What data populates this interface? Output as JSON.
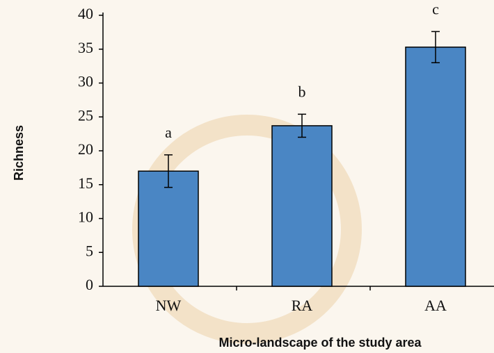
{
  "chart_data": {
    "type": "bar",
    "x_label": "Micro-landscape of the study area",
    "y_label": "Richness",
    "categories": [
      "NW",
      "RA",
      "AA"
    ],
    "values": [
      17,
      23.7,
      35.3
    ],
    "errors": [
      2.4,
      1.7,
      2.3
    ],
    "significance_letters": [
      "a",
      "b",
      "c"
    ],
    "color": "#4a86c4",
    "ylim": [
      0,
      40
    ],
    "yticks": [
      0,
      5,
      10,
      15,
      20,
      25,
      30,
      35,
      40
    ],
    "grid": false
  }
}
